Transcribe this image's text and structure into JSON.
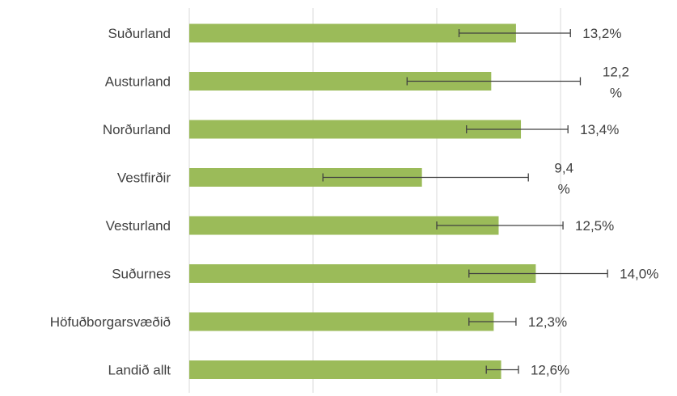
{
  "chart_data": {
    "type": "bar",
    "orientation": "horizontal",
    "categories": [
      "Suðurland",
      "Austurland",
      "Norðurland",
      "Vestfirðir",
      "Vesturland",
      "Suðurnes",
      "Höfuðborgarsvæðið",
      "Landið allt"
    ],
    "values": [
      13.2,
      12.2,
      13.4,
      9.4,
      12.5,
      14.0,
      12.3,
      12.6
    ],
    "error_low": [
      10.9,
      8.8,
      11.2,
      5.4,
      10.0,
      11.3,
      11.3,
      12.0
    ],
    "error_high": [
      15.4,
      15.8,
      15.3,
      13.7,
      15.1,
      16.9,
      13.2,
      13.3
    ],
    "data_labels": [
      [
        "13,2%"
      ],
      [
        "12,2",
        "%"
      ],
      [
        "13,4%"
      ],
      [
        "9,4",
        "%"
      ],
      [
        "12,5%"
      ],
      [
        "14,0%"
      ],
      [
        "12,3%"
      ],
      [
        "12,6%"
      ]
    ],
    "xlim": [
      0,
      15
    ],
    "gridlines": [
      0,
      5,
      10,
      15
    ],
    "grid": true,
    "legend": "none",
    "colors": {
      "bar": "#9BBB59",
      "error_bar": "#404040",
      "grid": "#D9D9D9",
      "text": "#404040"
    }
  }
}
